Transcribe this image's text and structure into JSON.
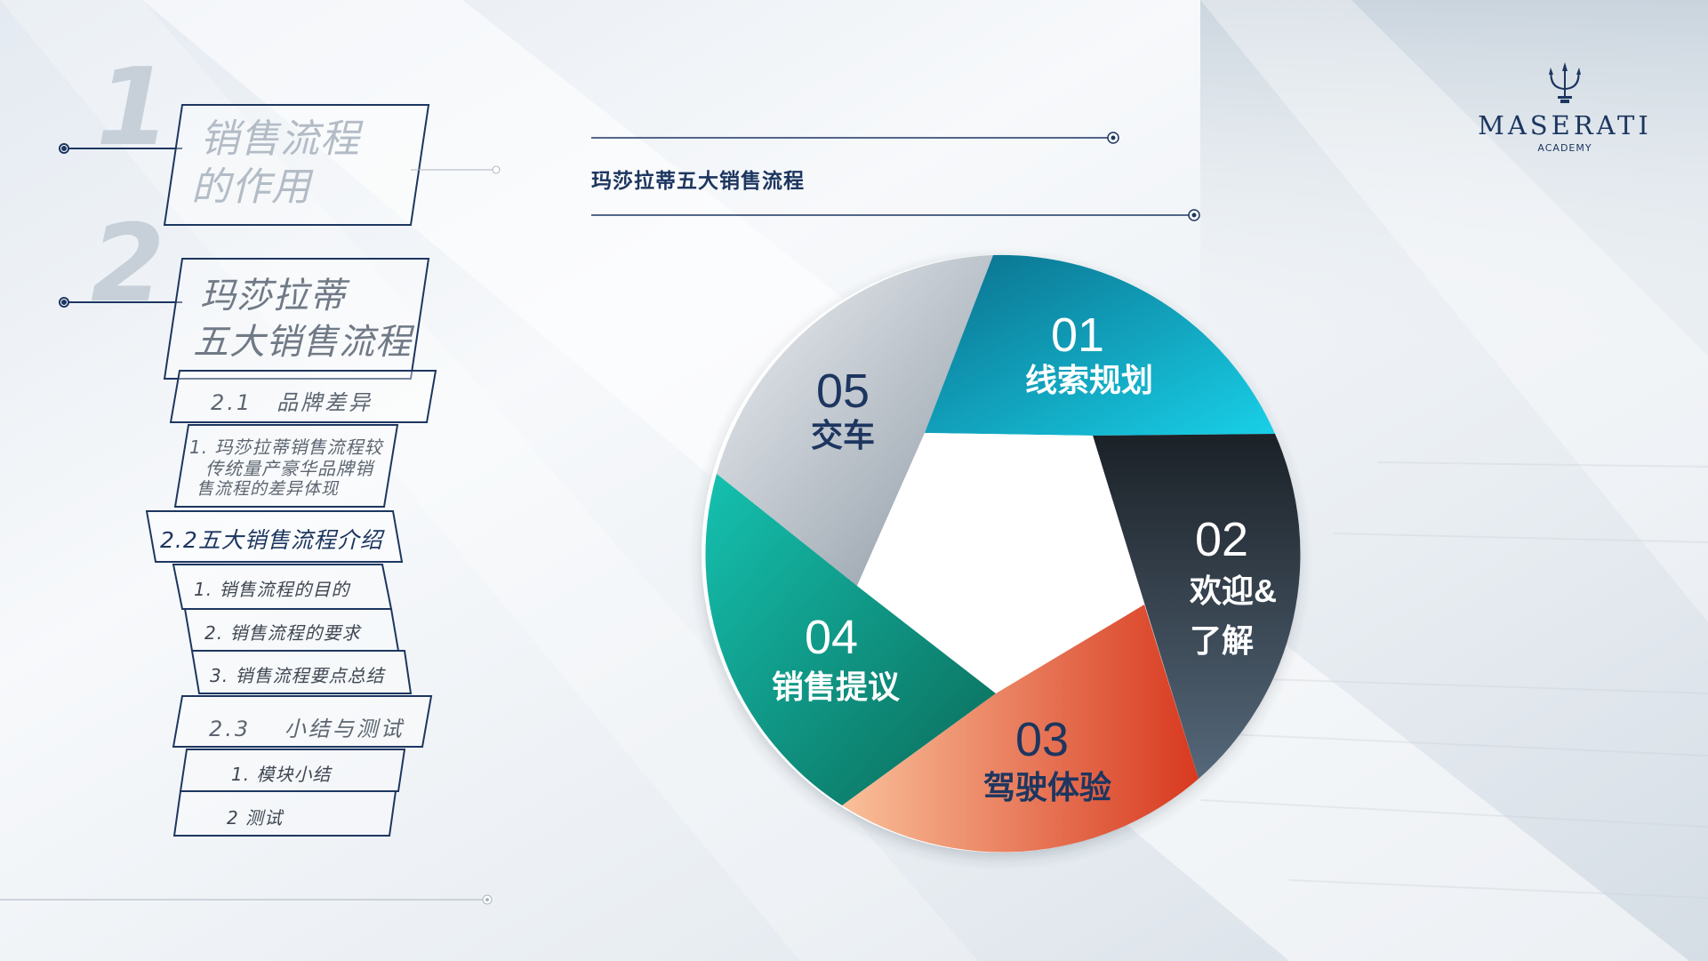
{
  "brand": {
    "name": "MASERATI",
    "sub": "ACADEMY",
    "color": "#1d3660"
  },
  "nav": {
    "section1": {
      "number": "1",
      "line1": "销售流程",
      "line2": "的作用"
    },
    "section2": {
      "number": "2",
      "line1": "玛莎拉蒂",
      "line2": "五大销售流程"
    },
    "s21": {
      "label": "2.1　品牌差异"
    },
    "s21_items": [
      "1.  玛莎拉蒂销售流程较",
      "传统量产豪华品牌销",
      "售流程的差异体现"
    ],
    "s22": {
      "label": "2.2五大销售流程介绍"
    },
    "s22_items": [
      "1.  销售流程的目的",
      "2.  销售流程的要求",
      "3.  销售流程要点总结"
    ],
    "s23": {
      "label": "2.3　 小结与测试"
    },
    "s23_items": [
      "1.  模块小结",
      "2  测试"
    ]
  },
  "diagram": {
    "title": "玛莎拉蒂五大销售流程",
    "segments": [
      {
        "number": "01",
        "label": "线索规划",
        "color": "#14a8c6",
        "text_color": "#ffffff"
      },
      {
        "number": "02",
        "label1": "欢迎&",
        "label2": "了解",
        "color": "#2f3a44",
        "text_color": "#ffffff"
      },
      {
        "number": "03",
        "label": "驾驶体验",
        "color": "#ef6a4a",
        "text_color": "#1d3660"
      },
      {
        "number": "04",
        "label": "销售提议",
        "color": "#10907d",
        "text_color": "#ffffff"
      },
      {
        "number": "05",
        "label": "交车",
        "color": "#b9c1c9",
        "text_color": "#1d3660"
      }
    ]
  }
}
